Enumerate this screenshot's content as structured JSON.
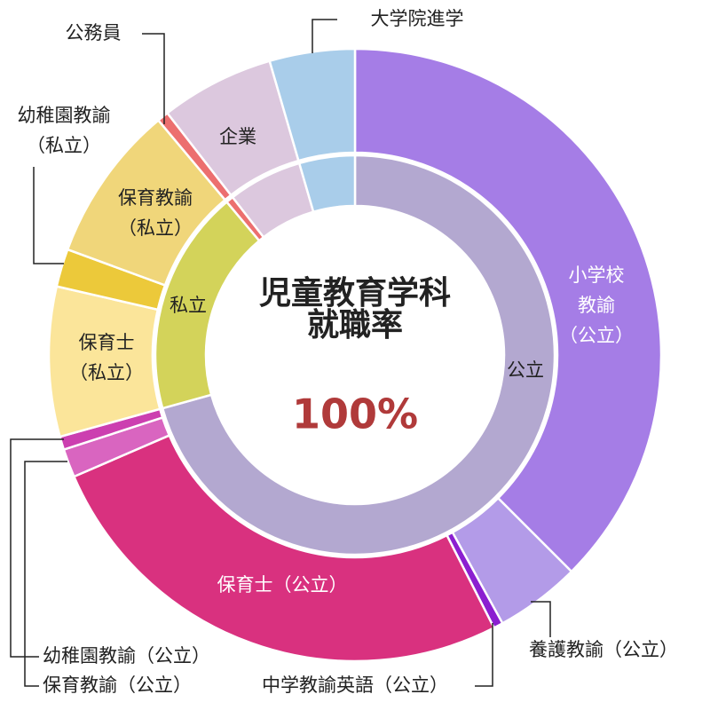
{
  "chart_data": {
    "type": "donut",
    "center_title": "児童教育学科\n就職率",
    "center_value": "100%",
    "series": [
      {
        "name": "outer",
        "categories": [
          "小学校\n教諭\n（公立）",
          "養護教諭（公立）",
          "中学教諭英語（公立）",
          "保育士（公立）",
          "保育教諭（公立）",
          "幼稚園教諭（公立）",
          "保育士\n（私立）",
          "幼稚園教諭\n（私立）",
          "保育教諭\n（私立）",
          "公務員",
          "企業",
          "大学院進学"
        ],
        "values": [
          37.5,
          4.5,
          0.5,
          26,
          1.5,
          0.7,
          7.9,
          2,
          8.3,
          0.6,
          6,
          4.5
        ],
        "colors": [
          "#a57de6",
          "#b39be8",
          "#8b1fd0",
          "#d9317f",
          "#d965c0",
          "#cc3fb0",
          "#fbe59a",
          "#ecc93a",
          "#f0d67a",
          "#ec6f6f",
          "#dcc8de",
          "#a9cdea"
        ]
      },
      {
        "name": "inner",
        "categories": [
          "公立",
          "私立",
          null,
          null,
          null
        ],
        "values": [
          70.7,
          18.2,
          0.6,
          6,
          4.5
        ],
        "colors": [
          "#b3a8d0",
          "#d3d35a",
          "#ec6f6f",
          "#dcc8de",
          "#a9cdea"
        ]
      }
    ]
  }
}
